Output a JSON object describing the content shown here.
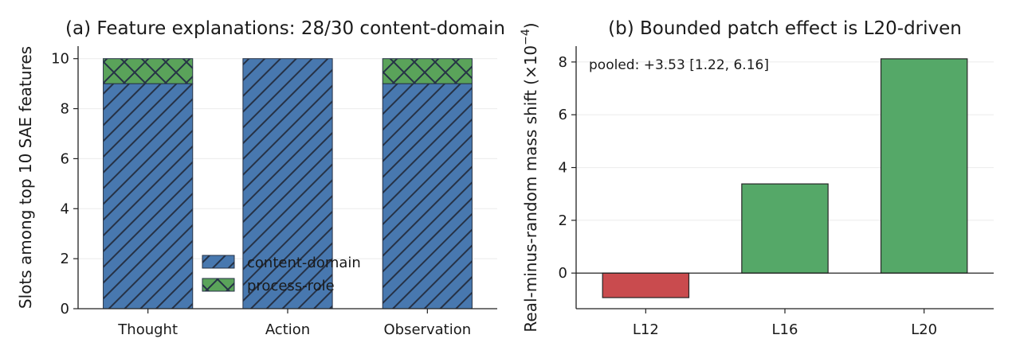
{
  "chart_data": [
    {
      "type": "bar",
      "stacked": true,
      "title": "(a) Feature explanations: 28/30 content-domain",
      "xlabel": "",
      "ylabel": "Slots among top 10 SAE features",
      "categories": [
        "Thought",
        "Action",
        "Observation"
      ],
      "series": [
        {
          "name": "content-domain",
          "values": [
            9,
            10,
            9
          ],
          "color": "#4878af",
          "hatch": "diagonal"
        },
        {
          "name": "process-role",
          "values": [
            1,
            0,
            1
          ],
          "color": "#5aa35a",
          "hatch": "cross"
        }
      ],
      "ylim": [
        0,
        10.5
      ],
      "yticks": [
        0,
        2,
        4,
        6,
        8,
        10
      ],
      "grid": true,
      "legend": "lower-center"
    },
    {
      "type": "bar",
      "title": "(b) Bounded patch effect is L20-driven",
      "xlabel": "",
      "ylabel": "Real-minus-random mass shift",
      "ylabel_unit": "(×10",
      "ylabel_exp": "−4",
      "ylabel_close": ")",
      "categories": [
        "L12",
        "L16",
        "L20"
      ],
      "values": [
        -0.93,
        3.38,
        8.12
      ],
      "colors": [
        "#c94b4e",
        "#55a868",
        "#55a868"
      ],
      "ylim": [
        -1.35,
        8.6
      ],
      "yticks": [
        0,
        2,
        4,
        6,
        8
      ],
      "grid": true,
      "annotation": "pooled: +3.53 [1.22, 6.16]"
    }
  ]
}
